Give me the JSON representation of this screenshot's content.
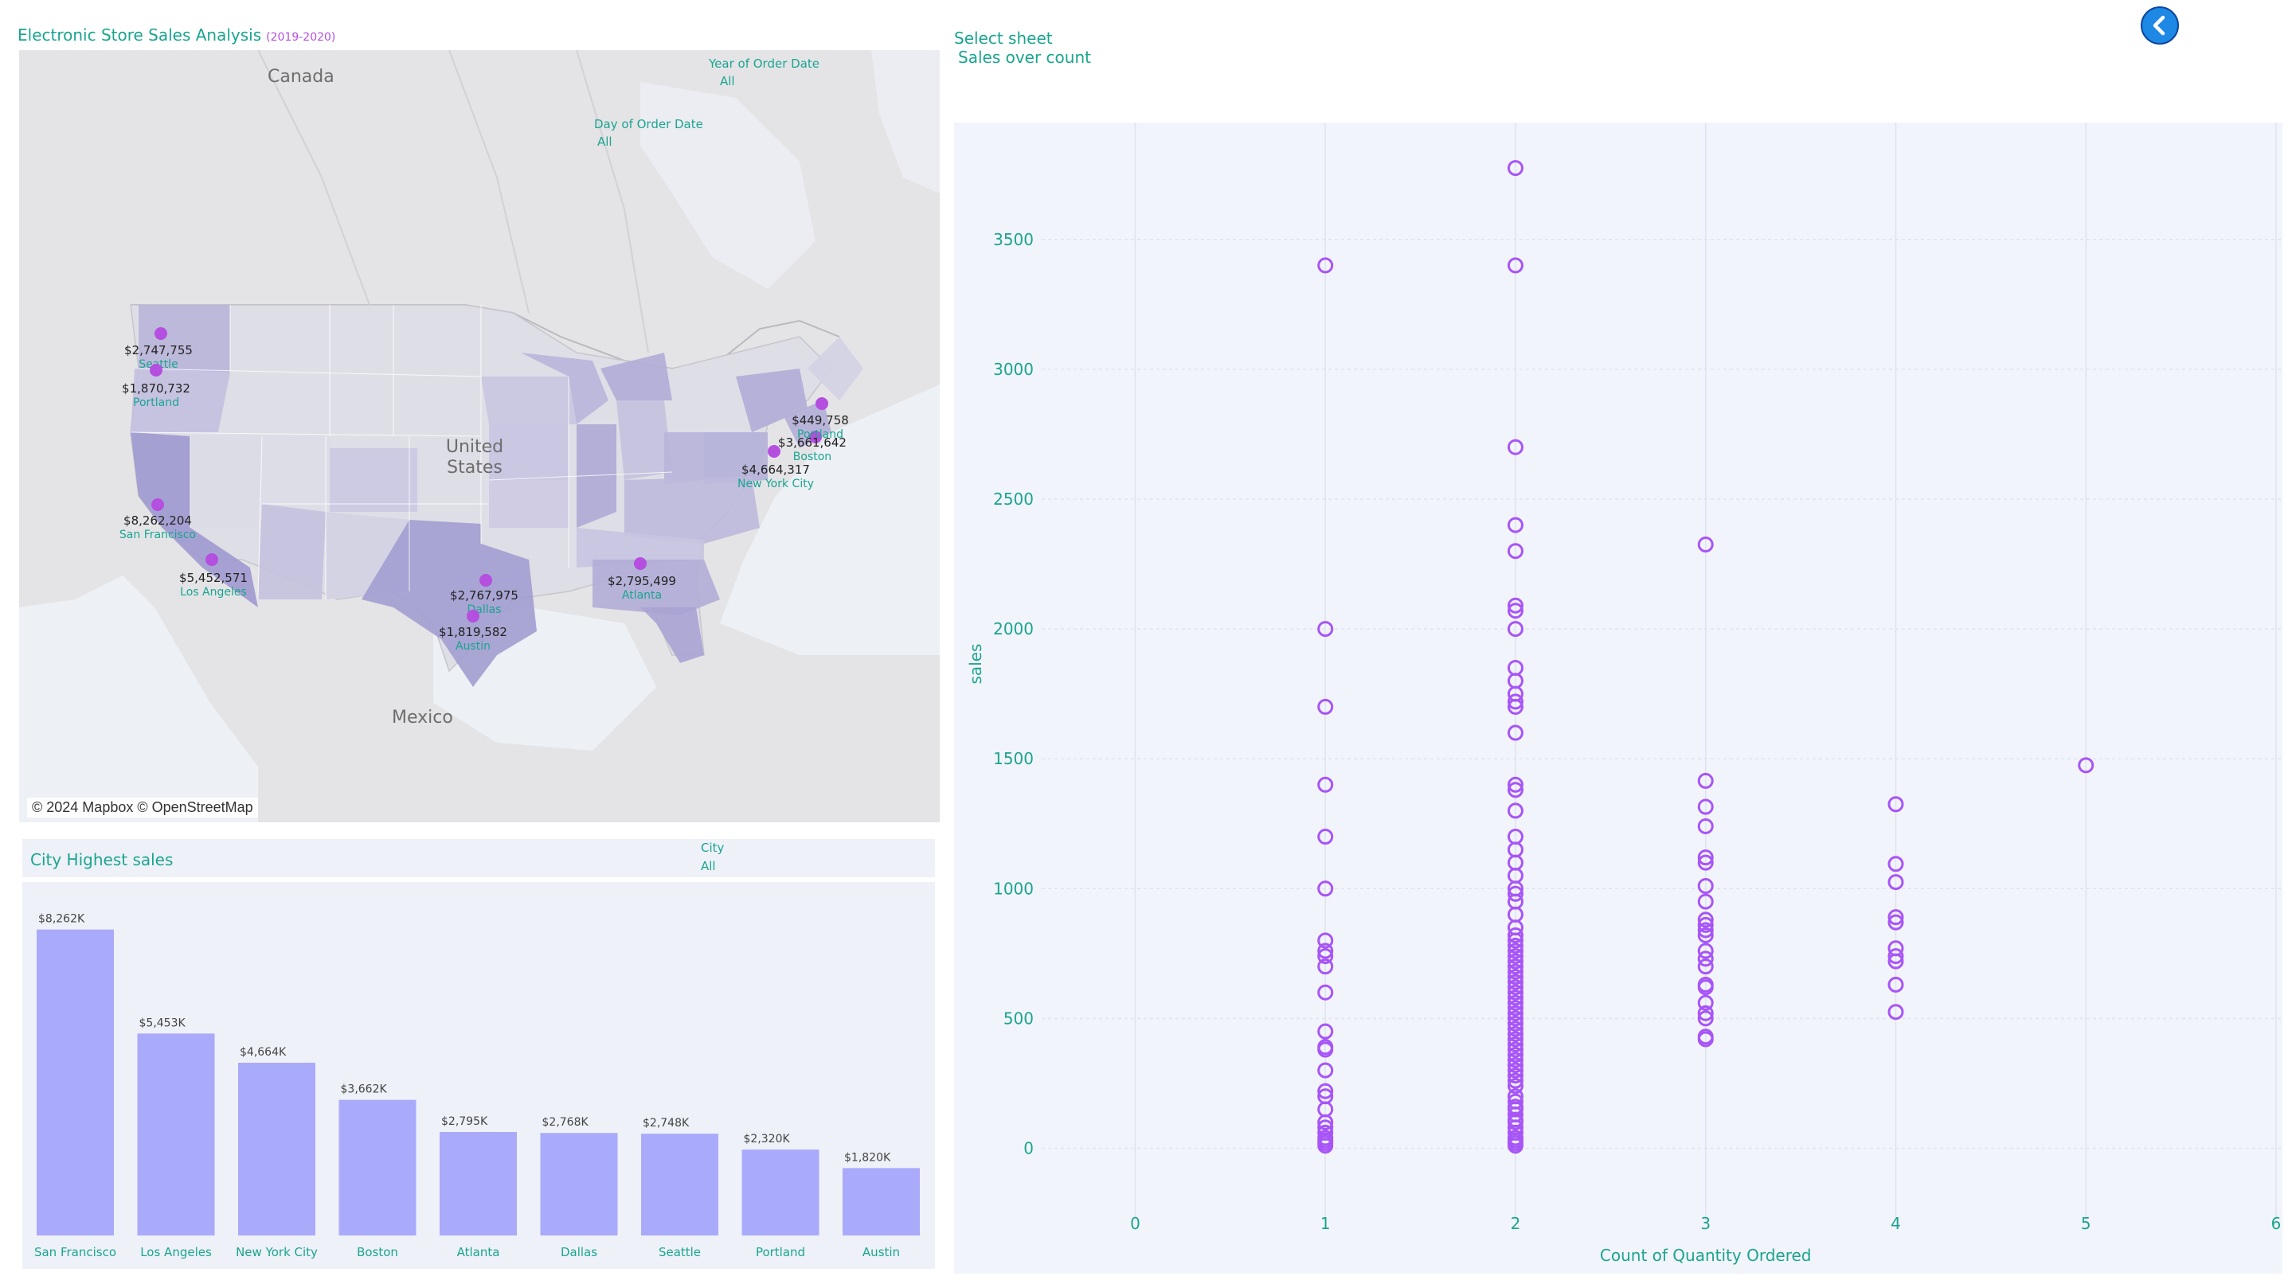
{
  "header": {
    "title": "Electronic Store Sales Analysis",
    "subtitle": "(2019-2020)"
  },
  "map": {
    "filters": [
      {
        "label": "Year of Order Date",
        "value": "All"
      },
      {
        "label": "Day of Order Date",
        "value": "All"
      }
    ],
    "countries": [
      "Canada",
      "United States",
      "Mexico"
    ],
    "attribution": "© 2024 Mapbox © OpenStreetMap",
    "marker_color": "#b44fdf",
    "cities": [
      {
        "name": "Seattle",
        "value": "$2,747,755"
      },
      {
        "name": "Portland",
        "value": "$1,870,732"
      },
      {
        "name": "San Francisco",
        "value": "$8,262,204"
      },
      {
        "name": "Los Angeles",
        "value": "$5,452,571"
      },
      {
        "name": "Dallas",
        "value": "$2,767,975"
      },
      {
        "name": "Austin",
        "value": "$1,819,582"
      },
      {
        "name": "Atlanta",
        "value": "$2,795,499"
      },
      {
        "name": "New York City",
        "value": "$4,664,317"
      },
      {
        "name": "Boston",
        "value": "$3,661,642"
      },
      {
        "name": "Portland",
        "value": "$449,758"
      }
    ]
  },
  "bar_section": {
    "title": "City Highest sales",
    "filter": {
      "label": "City",
      "value": "All"
    }
  },
  "scatter_section": {
    "select_label": "Select sheet",
    "select_value": "Sales over count"
  },
  "chart_data": [
    {
      "type": "bar",
      "title": "City Highest sales",
      "categories": [
        "San Francisco",
        "Los Angeles",
        "New York City",
        "Boston",
        "Atlanta",
        "Dallas",
        "Seattle",
        "Portland",
        "Austin"
      ],
      "values": [
        8262,
        5453,
        4664,
        3662,
        2795,
        2768,
        2748,
        2320,
        1820
      ],
      "labels": [
        "$8,262K",
        "$5,453K",
        "$4,664K",
        "$3,662K",
        "$2,795K",
        "$2,768K",
        "$2,748K",
        "$2,320K",
        "$1,820K"
      ],
      "bar_color": "#aaaafa",
      "ylim": [
        0,
        8900
      ]
    },
    {
      "type": "scatter",
      "xlabel": "Count of Quantity Ordered",
      "ylabel": "sales",
      "xlim": [
        -0.45,
        6.0
      ],
      "ylim": [
        -250,
        3950
      ],
      "xticks": [
        0,
        1,
        2,
        3,
        4,
        5,
        6
      ],
      "yticks": [
        0,
        500,
        1000,
        1500,
        2000,
        2500,
        3000,
        3500
      ],
      "grid": true,
      "marker": "open-circle",
      "marker_color": "#a855f7",
      "series": [
        {
          "x": 1,
          "y": [
            3400,
            2000,
            1700,
            1400,
            1200,
            1000,
            800,
            760,
            740,
            700,
            600,
            450,
            390,
            380,
            300,
            220,
            200,
            150,
            100,
            80,
            60,
            40,
            30,
            20,
            10
          ]
        },
        {
          "x": 2,
          "y": [
            3775,
            3400,
            2700,
            2400,
            2300,
            2090,
            2070,
            2000,
            1850,
            1800,
            1750,
            1720,
            1700,
            1600,
            1400,
            1380,
            1300,
            1200,
            1150,
            1100,
            1050,
            1000,
            980,
            950,
            900,
            850,
            820,
            800,
            780,
            760,
            740,
            720,
            700,
            680,
            660,
            640,
            620,
            600,
            580,
            560,
            540,
            520,
            500,
            480,
            460,
            440,
            420,
            400,
            380,
            360,
            340,
            320,
            300,
            280,
            260,
            240,
            200,
            180,
            160,
            150,
            130,
            110,
            100,
            80,
            60,
            40,
            30,
            20,
            10
          ]
        },
        {
          "x": 3,
          "y": [
            2325,
            1415,
            1315,
            1240,
            1120,
            1100,
            1010,
            950,
            880,
            860,
            840,
            820,
            760,
            730,
            700,
            630,
            620,
            560,
            520,
            500,
            430,
            420
          ]
        },
        {
          "x": 4,
          "y": [
            1325,
            1095,
            1025,
            890,
            870,
            770,
            740,
            720,
            630,
            525
          ]
        },
        {
          "x": 5,
          "y": [
            1475
          ]
        }
      ]
    }
  ]
}
